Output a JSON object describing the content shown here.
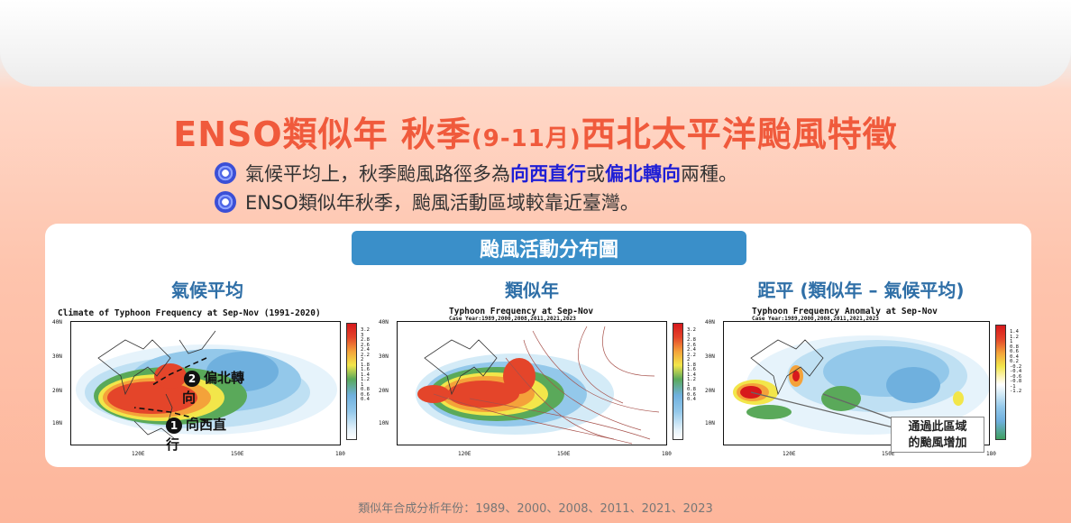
{
  "title": {
    "prefix": "ENSO類似年 秋季",
    "months": "(9-11月)",
    "suffix": "西北太平洋颱風特徵"
  },
  "bullets": [
    {
      "icon": "typhoon-icon",
      "before": "氣候平均上，秋季颱風路徑多為",
      "hl1": "向西直行",
      "mid": "或",
      "hl2": "偏北轉向",
      "after": "兩種。"
    },
    {
      "icon": "typhoon-icon",
      "text": "ENSO類似年秋季，颱風活動區域較靠近臺灣。"
    }
  ],
  "panel": {
    "header": "颱風活動分布圖",
    "columns": [
      {
        "title": "氣候平均",
        "map_title": "Climate of Typhoon Frequency at Sep-Nov (1991-2020)",
        "map_sub": ""
      },
      {
        "title": "類似年",
        "map_title": "Typhoon Frequency at Sep-Nov",
        "map_sub": "Case Year:1989,2000,2008,2011,2021,2023"
      },
      {
        "title": "距平 (類似年 – 氣候平均)",
        "map_title": "Typhoon Frequency Anomaly at Sep-Nov",
        "map_sub": "Case Year:1989,2000,2008,2011,2021,2023"
      }
    ],
    "lat_ticks": [
      "40N",
      "30N",
      "20N",
      "10N"
    ],
    "lon_ticks": [
      "120E",
      "150E",
      "180"
    ],
    "freq_scale": [
      "3.2",
      "3",
      "2.8",
      "2.6",
      "2.4",
      "2.2",
      "2",
      "1.8",
      "1.6",
      "1.4",
      "1.2",
      "1",
      "0.8",
      "0.6",
      "0.4"
    ],
    "anom_scale": [
      "1.4",
      "1.2",
      "1",
      "0.8",
      "0.6",
      "0.4",
      "0.2",
      "-0.2",
      "-0.4",
      "-0.6",
      "-0.8",
      "-1",
      "-1.2"
    ],
    "annotations": {
      "north": {
        "num": "2",
        "text": "偏北轉",
        "text2": "向"
      },
      "west": {
        "num": "1",
        "text": "向西直",
        "text2": "行"
      }
    },
    "callout": {
      "line1": "通過此區域",
      "line2": "的颱風增加"
    }
  },
  "footnote": "類似年合成分析年份：1989、2000、2008、2011、2021、2023",
  "colors": {
    "title": "#f05a3c",
    "highlight": "#1f1fd6",
    "header_bg": "#3a8fc9",
    "col_title": "#2f6fa7"
  }
}
